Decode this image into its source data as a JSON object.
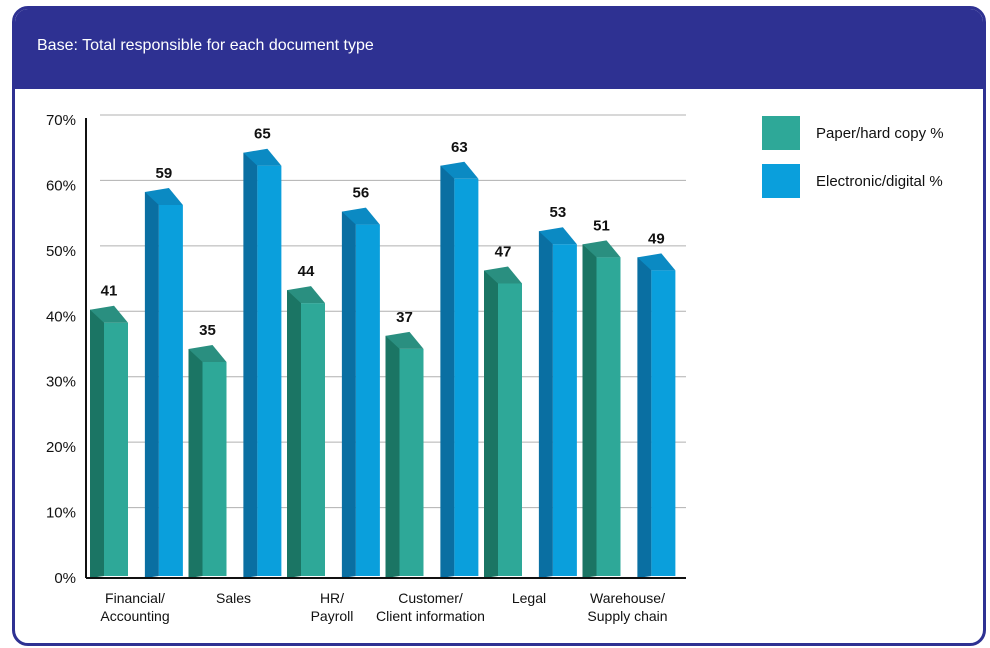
{
  "header": {
    "base_text": "Base: Total responsible for each document type"
  },
  "chart_data": {
    "type": "bar",
    "categories": [
      [
        "Financial/",
        "Accounting"
      ],
      [
        "Sales"
      ],
      [
        "HR/",
        "Payroll"
      ],
      [
        "Customer/",
        "Client information"
      ],
      [
        "Legal"
      ],
      [
        "Warehouse/",
        "Supply chain"
      ]
    ],
    "series": [
      {
        "name": "Paper/hard copy %",
        "values": [
          41,
          35,
          44,
          37,
          47,
          51
        ]
      },
      {
        "name": "Electronic/digital %",
        "values": [
          59,
          65,
          56,
          63,
          53,
          49
        ]
      }
    ],
    "ylim": [
      0,
      70
    ],
    "yticks": [
      "0%",
      "10%",
      "20%",
      "30%",
      "40%",
      "50%",
      "60%",
      "70%"
    ],
    "grid": true,
    "legend_position": "top-right",
    "colors": {
      "paper_front": "#2ea898",
      "paper_side": "#1b7564",
      "paper_top": "#2a8f80",
      "digital_front": "#0a9fdc",
      "digital_side": "#0a6fa2",
      "digital_top": "#0b8ac3",
      "frame": "#2e3192"
    }
  }
}
